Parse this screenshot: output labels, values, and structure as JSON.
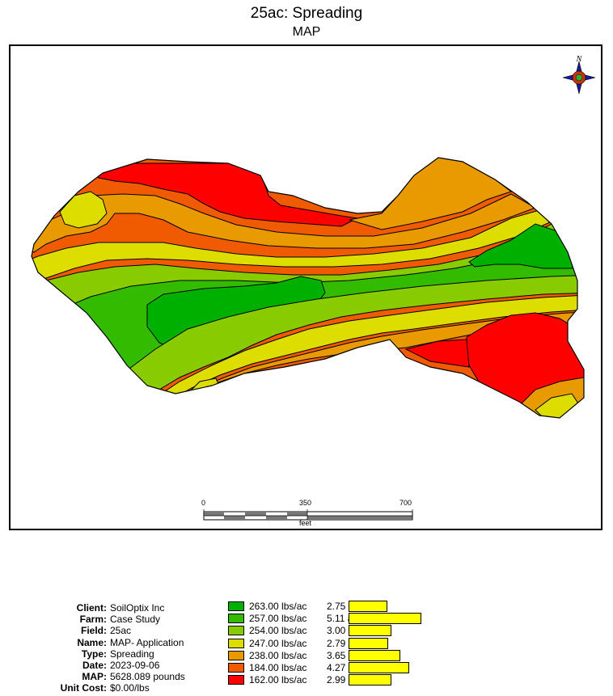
{
  "title": "25ac: Spreading",
  "subtitle": "MAP",
  "scalebar": {
    "labels": [
      "0",
      "350",
      "700"
    ],
    "unit": "feet"
  },
  "info": [
    {
      "label": "Client:",
      "value": "SoilOptix Inc"
    },
    {
      "label": "Farm:",
      "value": "Case Study"
    },
    {
      "label": "Field:",
      "value": "25ac"
    },
    {
      "label": "Name:",
      "value": "MAP- Application"
    },
    {
      "label": "Type:",
      "value": "Spreading"
    },
    {
      "label": "Date:",
      "value": "2023-09-06"
    },
    {
      "label": "MAP:",
      "value": "5628.089 pounds"
    },
    {
      "label": "Unit Cost:",
      "value": "$0.00/lbs"
    }
  ],
  "legend": [
    {
      "color": "#00b000",
      "rate": "263.00 lbs/ac",
      "area": "2.75 ac",
      "acres": 2.75
    },
    {
      "color": "#33bb00",
      "rate": "257.00 lbs/ac",
      "area": "5.11 ac",
      "acres": 5.11
    },
    {
      "color": "#88cc00",
      "rate": "254.00 lbs/ac",
      "area": "3.00 ac",
      "acres": 3.0
    },
    {
      "color": "#dddd00",
      "rate": "247.00 lbs/ac",
      "area": "2.79 ac",
      "acres": 2.79
    },
    {
      "color": "#e89a00",
      "rate": "238.00 lbs/ac",
      "area": "3.65 ac",
      "acres": 3.65
    },
    {
      "color": "#f05a00",
      "rate": "184.00 lbs/ac",
      "area": "4.27 ac",
      "acres": 4.27
    },
    {
      "color": "#ff0000",
      "rate": "162.00 lbs/ac",
      "area": "2.99 ac",
      "acres": 2.99
    }
  ]
}
